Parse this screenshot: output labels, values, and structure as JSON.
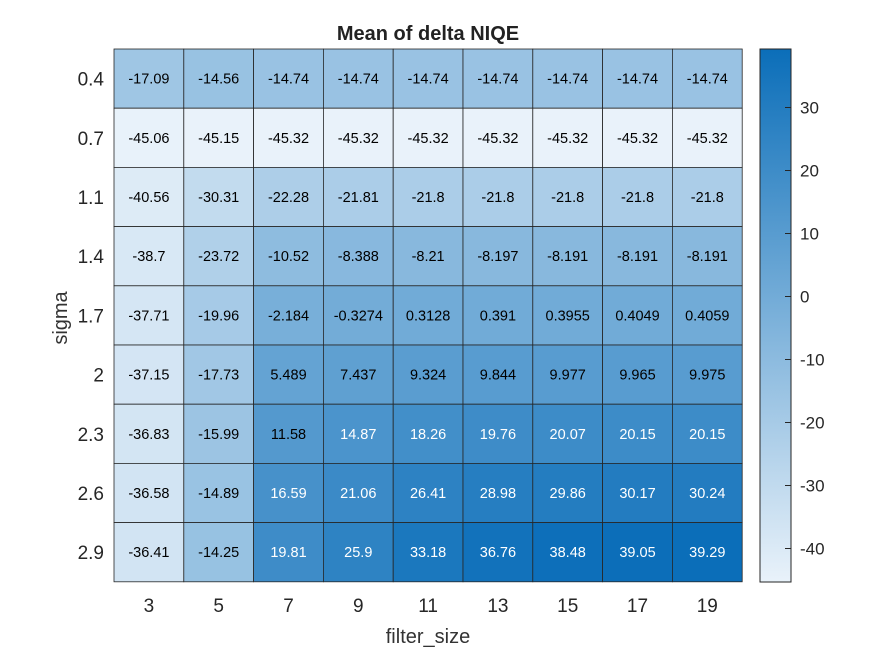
{
  "chart_data": {
    "type": "heatmap",
    "title": "Mean of delta NIQE",
    "xlabel": "filter_size",
    "ylabel": "sigma",
    "x": [
      "3",
      "5",
      "7",
      "9",
      "11",
      "13",
      "15",
      "17",
      "19"
    ],
    "y": [
      "0.4",
      "0.7",
      "1.1",
      "1.4",
      "1.7",
      "2",
      "2.3",
      "2.6",
      "2.9"
    ],
    "values": [
      [
        -17.09,
        -14.56,
        -14.74,
        -14.74,
        -14.74,
        -14.74,
        -14.74,
        -14.74,
        -14.74
      ],
      [
        -45.06,
        -45.15,
        -45.32,
        -45.32,
        -45.32,
        -45.32,
        -45.32,
        -45.32,
        -45.32
      ],
      [
        -40.56,
        -30.31,
        -22.28,
        -21.81,
        -21.8,
        -21.8,
        -21.8,
        -21.8,
        -21.8
      ],
      [
        -38.7,
        -23.72,
        -10.52,
        -8.388,
        -8.21,
        -8.197,
        -8.191,
        -8.191,
        -8.191
      ],
      [
        -37.71,
        -19.96,
        -2.184,
        -0.3274,
        0.3128,
        0.391,
        0.3955,
        0.4049,
        0.4059
      ],
      [
        -37.15,
        -17.73,
        5.489,
        7.437,
        9.324,
        9.844,
        9.977,
        9.965,
        9.975
      ],
      [
        -36.83,
        -15.99,
        11.58,
        14.87,
        18.26,
        19.76,
        20.07,
        20.15,
        20.15
      ],
      [
        -36.58,
        -14.89,
        16.59,
        21.06,
        26.41,
        28.98,
        29.86,
        30.17,
        30.24
      ],
      [
        -36.41,
        -14.25,
        19.81,
        25.9,
        33.18,
        36.76,
        38.48,
        39.05,
        39.29
      ]
    ],
    "labels": [
      [
        "-17.09",
        "-14.56",
        "-14.74",
        "-14.74",
        "-14.74",
        "-14.74",
        "-14.74",
        "-14.74",
        "-14.74"
      ],
      [
        "-45.06",
        "-45.15",
        "-45.32",
        "-45.32",
        "-45.32",
        "-45.32",
        "-45.32",
        "-45.32",
        "-45.32"
      ],
      [
        "-40.56",
        "-30.31",
        "-22.28",
        "-21.81",
        "-21.8",
        "-21.8",
        "-21.8",
        "-21.8",
        "-21.8"
      ],
      [
        "-38.7",
        "-23.72",
        "-10.52",
        "-8.388",
        "-8.21",
        "-8.197",
        "-8.191",
        "-8.191",
        "-8.191"
      ],
      [
        "-37.71",
        "-19.96",
        "-2.184",
        "-0.3274",
        "0.3128",
        "0.391",
        "0.3955",
        "0.4049",
        "0.4059"
      ],
      [
        "-37.15",
        "-17.73",
        "5.489",
        "7.437",
        "9.324",
        "9.844",
        "9.977",
        "9.965",
        "9.975"
      ],
      [
        "-36.83",
        "-15.99",
        "11.58",
        "14.87",
        "18.26",
        "19.76",
        "20.07",
        "20.15",
        "20.15"
      ],
      [
        "-36.58",
        "-14.89",
        "16.59",
        "21.06",
        "26.41",
        "28.98",
        "29.86",
        "30.17",
        "30.24"
      ],
      [
        "-36.41",
        "-14.25",
        "19.81",
        "25.9",
        "33.18",
        "36.76",
        "38.48",
        "39.05",
        "39.29"
      ]
    ],
    "colorbar": {
      "range": [
        -45.32,
        39.29
      ],
      "ticks": [
        -40,
        -30,
        -20,
        -10,
        0,
        10,
        20,
        30
      ],
      "tick_labels": [
        "-40",
        "-30",
        "-20",
        "-10",
        "0",
        "10",
        "20",
        "30"
      ],
      "color_low": "#e9f2fa",
      "color_high": "#0b6eb9"
    },
    "text_color_dark": "#000000",
    "text_color_light": "#ffffff",
    "grid": true
  }
}
